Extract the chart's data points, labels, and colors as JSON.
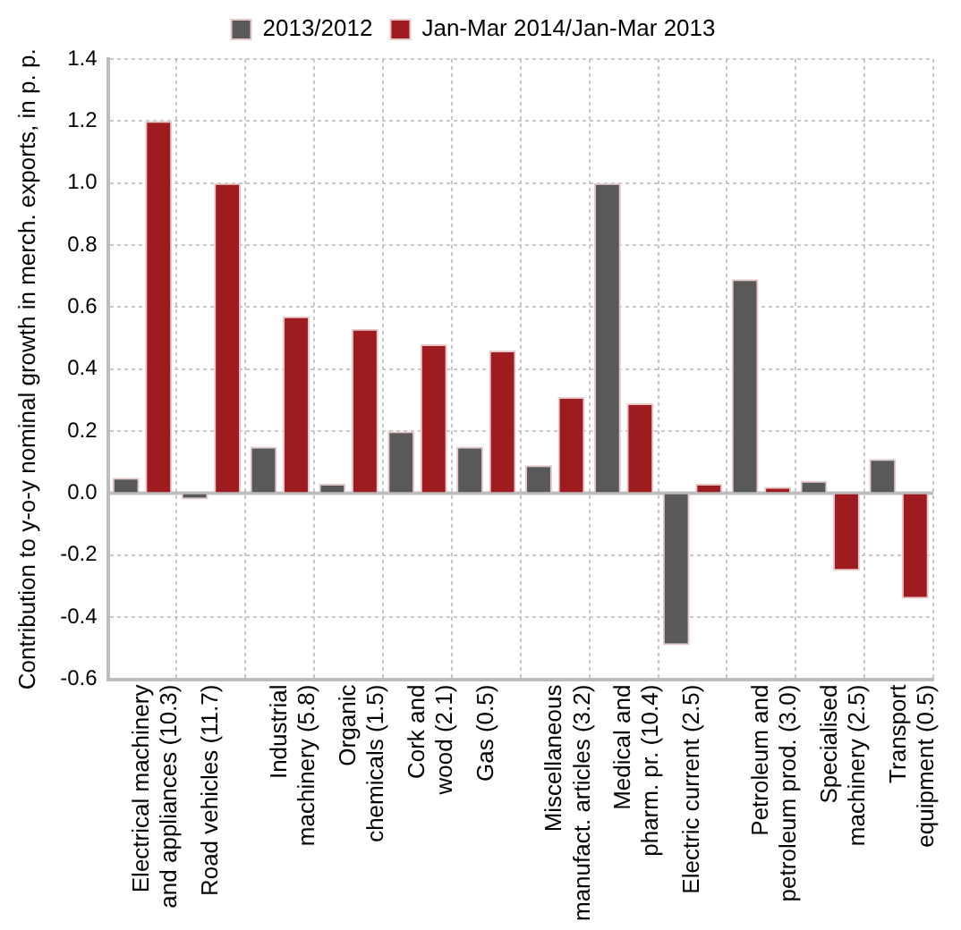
{
  "chart_data": {
    "type": "bar",
    "ylabel": "Contribution to y-o-y nominal growth in merch. exports, in p. p.",
    "categories": [
      "Electrical machinery\nand appliances (10.3)",
      "Road vehicles (11.7)",
      "Industrial\nmachinery (5.8)",
      "Organic\nchemicals (1.5)",
      "Cork and\nwood (2.1)",
      "Gas (0.5)",
      "Miscellaneous\nmanufact. articles (3.2)",
      "Medical and\npharm. pr. (10.4)",
      "Electric current (2.5)",
      "Petroleum and\npetroleum prod. (3.0)",
      "Specialised\nmachinery (2.5)",
      "Transport\nequipment (0.5)"
    ],
    "series": [
      {
        "name": "2013/2012",
        "color": "#595959",
        "values": [
          0.05,
          -0.02,
          0.15,
          0.03,
          0.2,
          0.15,
          0.09,
          1.0,
          -0.49,
          0.69,
          0.04,
          0.11
        ]
      },
      {
        "name": "Jan-Mar 2014/Jan-Mar 2013",
        "color": "#9e1b20",
        "values": [
          1.2,
          1.0,
          0.57,
          0.53,
          0.48,
          0.46,
          0.31,
          0.29,
          0.03,
          0.02,
          -0.25,
          -0.34
        ]
      }
    ],
    "ylim": [
      -0.6,
      1.4
    ],
    "yticks": [
      {
        "value": -0.6,
        "label": "-0.6"
      },
      {
        "value": -0.4,
        "label": "-0.4"
      },
      {
        "value": -0.2,
        "label": "-0.2"
      },
      {
        "value": 0,
        "label": "0.0"
      },
      {
        "value": 0.2,
        "label": "0.2"
      },
      {
        "value": 0.4,
        "label": "0.4"
      },
      {
        "value": 0.6,
        "label": "0.6"
      },
      {
        "value": 0.8,
        "label": "0.8"
      },
      {
        "value": 1,
        "label": "1.0"
      },
      {
        "value": 1.2,
        "label": "1.2"
      },
      {
        "value": 1.4,
        "label": "1.4"
      }
    ],
    "grid": true,
    "legend": "top"
  }
}
